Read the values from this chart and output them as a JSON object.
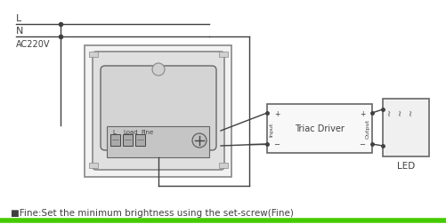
{
  "bg_color": "#ffffff",
  "green_line_color": "#44cc00",
  "line_color": "#404040",
  "gray_light": "#e8e8e8",
  "gray_med": "#cccccc",
  "gray_dark": "#888888",
  "gray_darker": "#555555",
  "title_text": "■Fine:Set the minimum brightness using the set-screw(Fine)",
  "L_label": "L",
  "N_label": "N",
  "AC_label": "AC220V",
  "driver_label": "Triac Driver",
  "led_label": "LED",
  "input_label": "Input",
  "output_label": "Output",
  "load_label": "Load",
  "fine_label": "Fine",
  "L_term": "L"
}
